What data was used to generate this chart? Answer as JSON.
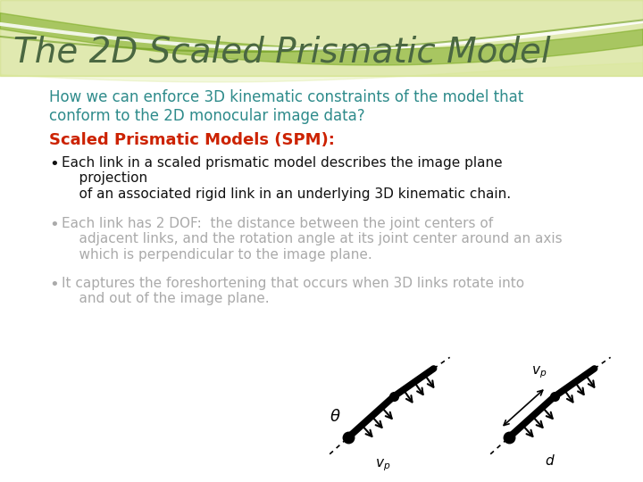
{
  "title": "The 2D Scaled Prismatic Model",
  "title_color": "#4a6741",
  "title_fontsize": 28,
  "subtitle": "How we can enforce 3D kinematic constraints of the model that\nconform to the 2D monocular image data?",
  "subtitle_color": "#2e8b8b",
  "subtitle_fontsize": 12,
  "spm_label": "Scaled Prismatic Models (SPM):",
  "spm_color": "#cc2200",
  "spm_fontsize": 13,
  "bullet1_black": "Each link in a scaled prismatic model describes the image plane\n    projection\n    of an associated rigid link in an underlying 3D kinematic chain.",
  "bullet2_gray": "Each link has 2 DOF:  the distance between the joint centers of\n    adjacent links, and the rotation angle at its joint center around an axis\n    which is perpendicular to the image plane.",
  "bullet3_gray": "It captures the foreshortening that occurs when 3D links rotate into\n    and out of the image plane.",
  "bullet_black_color": "#111111",
  "bullet_gray_color": "#aaaaaa",
  "bullet_fontsize": 11,
  "bg_color": "#ffffff",
  "wave_color1": "#b5cc55",
  "wave_color2": "#6fa020"
}
